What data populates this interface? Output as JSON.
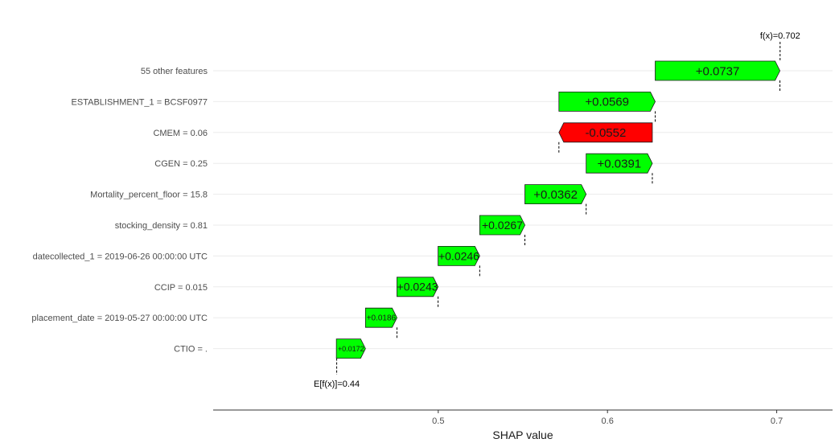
{
  "chart_data": {
    "type": "waterfall",
    "title": "",
    "xlabel": "SHAP value",
    "ylabel": "",
    "xlim": [
      0.367,
      0.733
    ],
    "x_ticks": [
      0.5,
      0.6,
      0.7
    ],
    "x_tick_labels": [
      "0.5",
      "0.6",
      "0.7"
    ],
    "grid": "horizontal",
    "base_value": 0.44,
    "base_label": "E[f(x)]=0.44",
    "final_value": 0.702,
    "final_label": "f(x)=0.702",
    "colors": {
      "positive": "#00ff00",
      "negative": "#ff0000",
      "outline": "#1a1a1a"
    },
    "features": [
      {
        "label": "55 other features",
        "start": 0.6282,
        "value": 0.0737,
        "text": "+0.0737"
      },
      {
        "label": "ESTABLISHMENT_1 = BCSF0977",
        "start": 0.5713,
        "value": 0.0569,
        "text": "+0.0569"
      },
      {
        "label": "CMEM = 0.06",
        "start": 0.6265,
        "value": -0.0552,
        "text": "-0.0552"
      },
      {
        "label": "CGEN = 0.25",
        "start": 0.5874,
        "value": 0.0391,
        "text": "+0.0391"
      },
      {
        "label": "Mortality_percent_floor = 15.8",
        "start": 0.5512,
        "value": 0.0362,
        "text": "+0.0362"
      },
      {
        "label": "stocking_density = 0.81",
        "start": 0.5245,
        "value": 0.0267,
        "text": "+0.0267"
      },
      {
        "label": "datecollected_1 = 2019-06-26 00:00:00 UTC",
        "start": 0.4999,
        "value": 0.0246,
        "text": "+0.0246"
      },
      {
        "label": "CCIP = 0.015",
        "start": 0.4756,
        "value": 0.0243,
        "text": "+0.0243"
      },
      {
        "label": "placement_date = 2019-05-27 00:00:00 UTC",
        "start": 0.457,
        "value": 0.0186,
        "text": "+0.0186"
      },
      {
        "label": "CTIO = .",
        "start": 0.4398,
        "value": 0.0172,
        "text": "+0.0172"
      }
    ]
  }
}
